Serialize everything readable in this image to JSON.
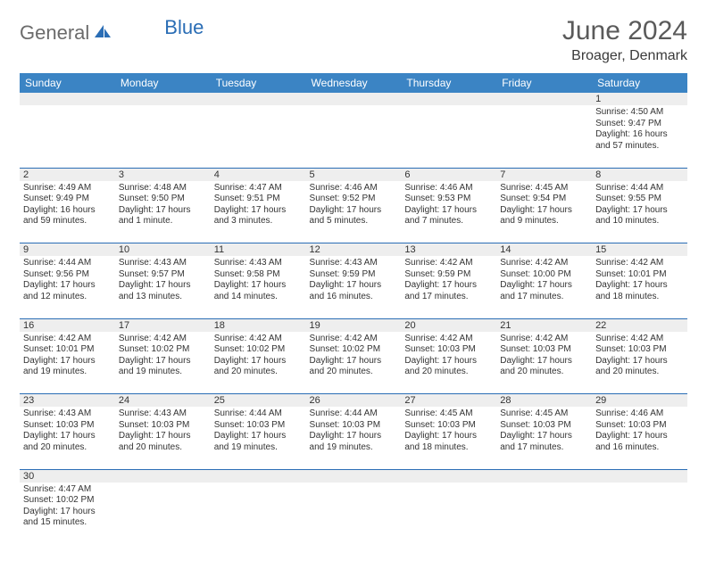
{
  "brand": {
    "gray": "General",
    "blue": "Blue"
  },
  "title": "June 2024",
  "location": "Broager, Denmark",
  "colors": {
    "header_bg": "#3b84c4",
    "header_text": "#ffffff",
    "rule": "#2a6db5",
    "daynum_bg": "#eeeeee",
    "body_text": "#333333"
  },
  "weekdays": [
    "Sunday",
    "Monday",
    "Tuesday",
    "Wednesday",
    "Thursday",
    "Friday",
    "Saturday"
  ],
  "weeks": [
    [
      null,
      null,
      null,
      null,
      null,
      null,
      {
        "n": "1",
        "sunrise": "Sunrise: 4:50 AM",
        "sunset": "Sunset: 9:47 PM",
        "day1": "Daylight: 16 hours",
        "day2": "and 57 minutes."
      }
    ],
    [
      {
        "n": "2",
        "sunrise": "Sunrise: 4:49 AM",
        "sunset": "Sunset: 9:49 PM",
        "day1": "Daylight: 16 hours",
        "day2": "and 59 minutes."
      },
      {
        "n": "3",
        "sunrise": "Sunrise: 4:48 AM",
        "sunset": "Sunset: 9:50 PM",
        "day1": "Daylight: 17 hours",
        "day2": "and 1 minute."
      },
      {
        "n": "4",
        "sunrise": "Sunrise: 4:47 AM",
        "sunset": "Sunset: 9:51 PM",
        "day1": "Daylight: 17 hours",
        "day2": "and 3 minutes."
      },
      {
        "n": "5",
        "sunrise": "Sunrise: 4:46 AM",
        "sunset": "Sunset: 9:52 PM",
        "day1": "Daylight: 17 hours",
        "day2": "and 5 minutes."
      },
      {
        "n": "6",
        "sunrise": "Sunrise: 4:46 AM",
        "sunset": "Sunset: 9:53 PM",
        "day1": "Daylight: 17 hours",
        "day2": "and 7 minutes."
      },
      {
        "n": "7",
        "sunrise": "Sunrise: 4:45 AM",
        "sunset": "Sunset: 9:54 PM",
        "day1": "Daylight: 17 hours",
        "day2": "and 9 minutes."
      },
      {
        "n": "8",
        "sunrise": "Sunrise: 4:44 AM",
        "sunset": "Sunset: 9:55 PM",
        "day1": "Daylight: 17 hours",
        "day2": "and 10 minutes."
      }
    ],
    [
      {
        "n": "9",
        "sunrise": "Sunrise: 4:44 AM",
        "sunset": "Sunset: 9:56 PM",
        "day1": "Daylight: 17 hours",
        "day2": "and 12 minutes."
      },
      {
        "n": "10",
        "sunrise": "Sunrise: 4:43 AM",
        "sunset": "Sunset: 9:57 PM",
        "day1": "Daylight: 17 hours",
        "day2": "and 13 minutes."
      },
      {
        "n": "11",
        "sunrise": "Sunrise: 4:43 AM",
        "sunset": "Sunset: 9:58 PM",
        "day1": "Daylight: 17 hours",
        "day2": "and 14 minutes."
      },
      {
        "n": "12",
        "sunrise": "Sunrise: 4:43 AM",
        "sunset": "Sunset: 9:59 PM",
        "day1": "Daylight: 17 hours",
        "day2": "and 16 minutes."
      },
      {
        "n": "13",
        "sunrise": "Sunrise: 4:42 AM",
        "sunset": "Sunset: 9:59 PM",
        "day1": "Daylight: 17 hours",
        "day2": "and 17 minutes."
      },
      {
        "n": "14",
        "sunrise": "Sunrise: 4:42 AM",
        "sunset": "Sunset: 10:00 PM",
        "day1": "Daylight: 17 hours",
        "day2": "and 17 minutes."
      },
      {
        "n": "15",
        "sunrise": "Sunrise: 4:42 AM",
        "sunset": "Sunset: 10:01 PM",
        "day1": "Daylight: 17 hours",
        "day2": "and 18 minutes."
      }
    ],
    [
      {
        "n": "16",
        "sunrise": "Sunrise: 4:42 AM",
        "sunset": "Sunset: 10:01 PM",
        "day1": "Daylight: 17 hours",
        "day2": "and 19 minutes."
      },
      {
        "n": "17",
        "sunrise": "Sunrise: 4:42 AM",
        "sunset": "Sunset: 10:02 PM",
        "day1": "Daylight: 17 hours",
        "day2": "and 19 minutes."
      },
      {
        "n": "18",
        "sunrise": "Sunrise: 4:42 AM",
        "sunset": "Sunset: 10:02 PM",
        "day1": "Daylight: 17 hours",
        "day2": "and 20 minutes."
      },
      {
        "n": "19",
        "sunrise": "Sunrise: 4:42 AM",
        "sunset": "Sunset: 10:02 PM",
        "day1": "Daylight: 17 hours",
        "day2": "and 20 minutes."
      },
      {
        "n": "20",
        "sunrise": "Sunrise: 4:42 AM",
        "sunset": "Sunset: 10:03 PM",
        "day1": "Daylight: 17 hours",
        "day2": "and 20 minutes."
      },
      {
        "n": "21",
        "sunrise": "Sunrise: 4:42 AM",
        "sunset": "Sunset: 10:03 PM",
        "day1": "Daylight: 17 hours",
        "day2": "and 20 minutes."
      },
      {
        "n": "22",
        "sunrise": "Sunrise: 4:42 AM",
        "sunset": "Sunset: 10:03 PM",
        "day1": "Daylight: 17 hours",
        "day2": "and 20 minutes."
      }
    ],
    [
      {
        "n": "23",
        "sunrise": "Sunrise: 4:43 AM",
        "sunset": "Sunset: 10:03 PM",
        "day1": "Daylight: 17 hours",
        "day2": "and 20 minutes."
      },
      {
        "n": "24",
        "sunrise": "Sunrise: 4:43 AM",
        "sunset": "Sunset: 10:03 PM",
        "day1": "Daylight: 17 hours",
        "day2": "and 20 minutes."
      },
      {
        "n": "25",
        "sunrise": "Sunrise: 4:44 AM",
        "sunset": "Sunset: 10:03 PM",
        "day1": "Daylight: 17 hours",
        "day2": "and 19 minutes."
      },
      {
        "n": "26",
        "sunrise": "Sunrise: 4:44 AM",
        "sunset": "Sunset: 10:03 PM",
        "day1": "Daylight: 17 hours",
        "day2": "and 19 minutes."
      },
      {
        "n": "27",
        "sunrise": "Sunrise: 4:45 AM",
        "sunset": "Sunset: 10:03 PM",
        "day1": "Daylight: 17 hours",
        "day2": "and 18 minutes."
      },
      {
        "n": "28",
        "sunrise": "Sunrise: 4:45 AM",
        "sunset": "Sunset: 10:03 PM",
        "day1": "Daylight: 17 hours",
        "day2": "and 17 minutes."
      },
      {
        "n": "29",
        "sunrise": "Sunrise: 4:46 AM",
        "sunset": "Sunset: 10:03 PM",
        "day1": "Daylight: 17 hours",
        "day2": "and 16 minutes."
      }
    ],
    [
      {
        "n": "30",
        "sunrise": "Sunrise: 4:47 AM",
        "sunset": "Sunset: 10:02 PM",
        "day1": "Daylight: 17 hours",
        "day2": "and 15 minutes."
      },
      null,
      null,
      null,
      null,
      null,
      null
    ]
  ]
}
